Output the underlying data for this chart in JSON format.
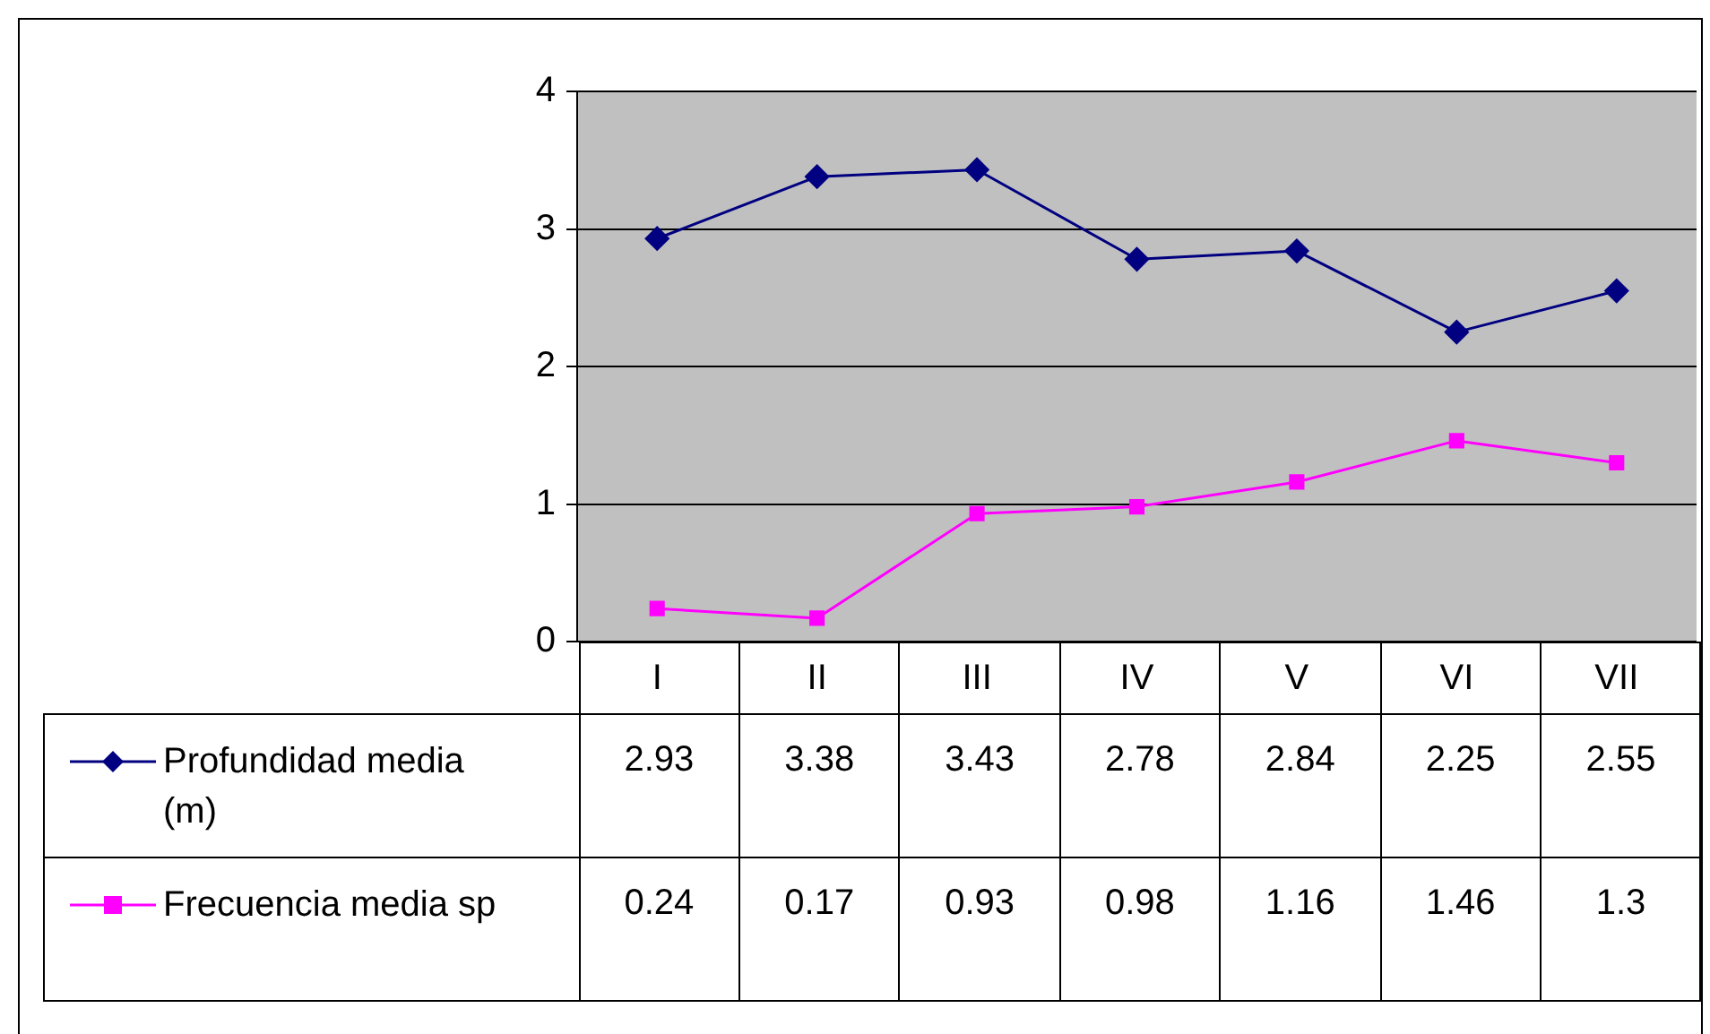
{
  "chart_data": {
    "type": "line",
    "categories": [
      "I",
      "II",
      "III",
      "IV",
      "V",
      "VI",
      "VII"
    ],
    "series": [
      {
        "name": "Profundidad media (m)",
        "color": "#000080",
        "marker": "diamond",
        "values": [
          2.93,
          3.38,
          3.43,
          2.78,
          2.84,
          2.25,
          2.55
        ]
      },
      {
        "name": "Frecuencia media sp",
        "color": "#ff00ff",
        "marker": "square",
        "values": [
          0.24,
          0.17,
          0.93,
          0.98,
          1.16,
          1.46,
          1.3
        ]
      }
    ],
    "ylim": [
      0,
      4
    ],
    "yticks": [
      0,
      1,
      2,
      3,
      4
    ],
    "grid": "y",
    "legend": "bottom",
    "data_labels": true,
    "line_style": "solid"
  }
}
